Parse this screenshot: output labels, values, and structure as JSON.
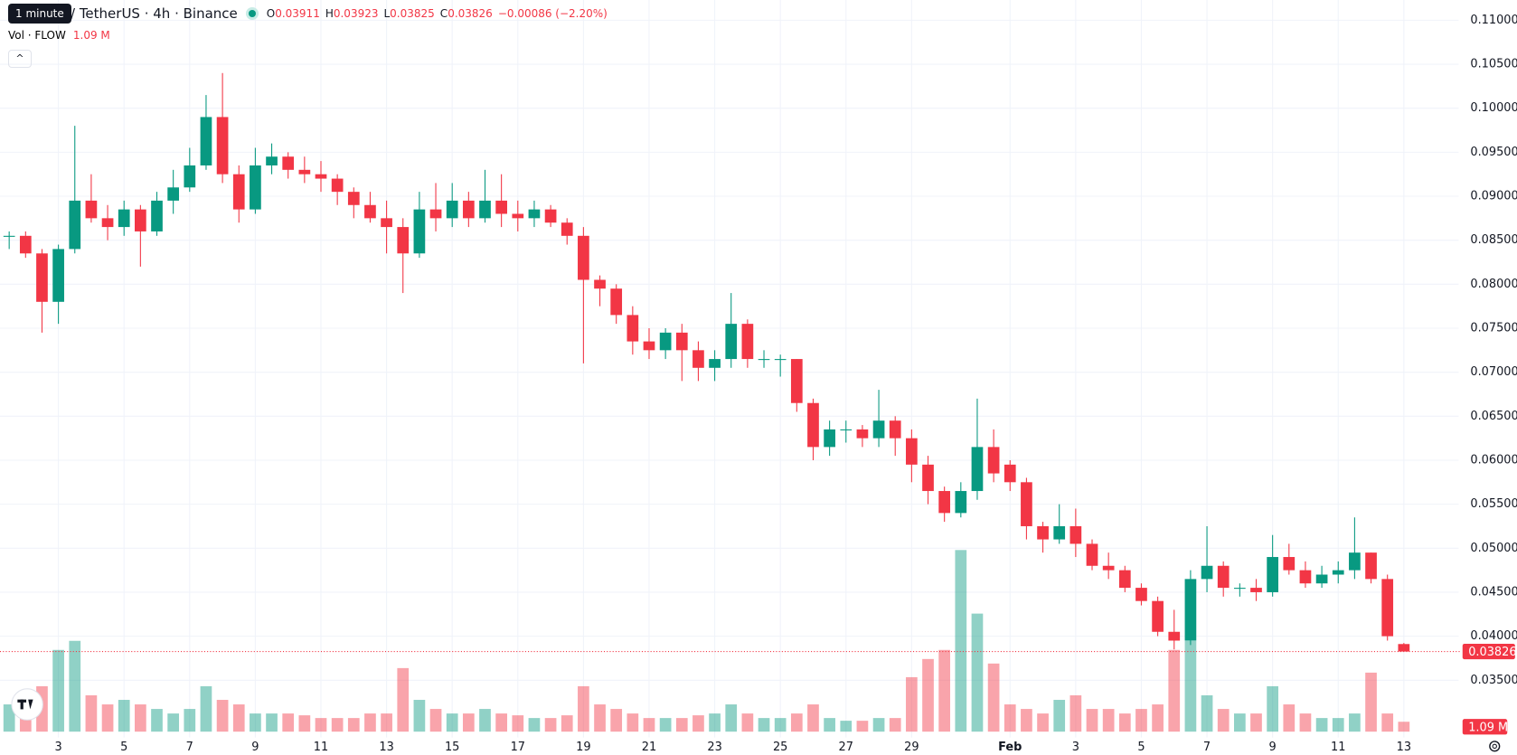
{
  "chart_data": {
    "type": "candlestick",
    "tooltip": "1 minute",
    "symbol": "/ TetherUS · 4h · Binance",
    "ohlc_letters": [
      "O",
      "H",
      "L",
      "C"
    ],
    "change_label": "−0.00086 (−2.20%)",
    "volume_title": "Vol · FLOW",
    "volume_last_label": "1.09 M",
    "up_color": "#089981",
    "down_color": "#f23645",
    "grid": true,
    "xlim": [
      1.22,
      45.67
    ],
    "ylim": [
      0.0265,
      0.1123
    ],
    "y2lim": [
      0,
      30
    ],
    "xticks": [
      3,
      5,
      7,
      9,
      11,
      13,
      15,
      17,
      19,
      21,
      23,
      25,
      27,
      29,
      {
        "value": 32,
        "label": "Feb"
      },
      {
        "value": 34,
        "label": "3"
      },
      {
        "value": 36,
        "label": "5"
      },
      {
        "value": 38,
        "label": "7"
      },
      {
        "value": 40,
        "label": "9"
      },
      {
        "value": 42,
        "label": "11"
      },
      {
        "value": 44,
        "label": "13"
      }
    ],
    "yticks": [
      {
        "value": 0.035,
        "label": "0.03500"
      },
      {
        "value": 0.04,
        "label": "0.04000"
      },
      {
        "value": 0.045,
        "label": "0.04500"
      },
      {
        "value": 0.05,
        "label": "0.05000"
      },
      {
        "value": 0.055,
        "label": "0.05500"
      },
      {
        "value": 0.06,
        "label": "0.06000"
      },
      {
        "value": 0.065,
        "label": "0.06500"
      },
      {
        "value": 0.07,
        "label": "0.07000"
      },
      {
        "value": 0.075,
        "label": "0.07500"
      },
      {
        "value": 0.08,
        "label": "0.08000"
      },
      {
        "value": 0.085,
        "label": "0.08500"
      },
      {
        "value": 0.09,
        "label": "0.09000"
      },
      {
        "value": 0.095,
        "label": "0.09500"
      },
      {
        "value": 0.1,
        "label": "0.10000"
      },
      {
        "value": 0.105,
        "label": "0.10500"
      },
      {
        "value": 0.11,
        "label": "0.11000"
      }
    ],
    "x": [
      1.5,
      2,
      2.5,
      3,
      3.5,
      4,
      4.5,
      5,
      5.5,
      6,
      6.5,
      7,
      7.5,
      8,
      8.5,
      9,
      9.5,
      10,
      10.5,
      11,
      11.5,
      12,
      12.5,
      13,
      13.5,
      14,
      14.5,
      15,
      15.5,
      16,
      16.5,
      17,
      17.5,
      18,
      18.5,
      19,
      19.5,
      20,
      20.5,
      21,
      21.5,
      22,
      22.5,
      23,
      23.5,
      24,
      24.5,
      25,
      25.5,
      26,
      26.5,
      27,
      27.5,
      28,
      28.5,
      29,
      29.5,
      30,
      30.5,
      31,
      31.5,
      32,
      32.5,
      33,
      33.5,
      34,
      34.5,
      35,
      35.5,
      36,
      36.5,
      37,
      37.5,
      38,
      38.5,
      39,
      39.5,
      40,
      40.5,
      41,
      41.5,
      42,
      42.5,
      43,
      43.5,
      44
    ],
    "open": [
      0.0855,
      0.0855,
      0.0835,
      0.078,
      0.084,
      0.0895,
      0.0875,
      0.0865,
      0.0885,
      0.086,
      0.0895,
      0.091,
      0.0935,
      0.099,
      0.0925,
      0.0885,
      0.0935,
      0.0945,
      0.093,
      0.0925,
      0.092,
      0.0905,
      0.089,
      0.0875,
      0.0865,
      0.0835,
      0.0885,
      0.0875,
      0.0895,
      0.0875,
      0.0895,
      0.088,
      0.0875,
      0.0885,
      0.087,
      0.0855,
      0.0805,
      0.0795,
      0.0765,
      0.0735,
      0.0725,
      0.0745,
      0.0725,
      0.0705,
      0.0715,
      0.0755,
      0.0715,
      0.0715,
      0.0715,
      0.0665,
      0.0615,
      0.0635,
      0.0635,
      0.0625,
      0.0645,
      0.0625,
      0.0595,
      0.0565,
      0.054,
      0.0565,
      0.0615,
      0.0595,
      0.0575,
      0.0525,
      0.051,
      0.0525,
      0.0505,
      0.048,
      0.0475,
      0.0455,
      0.044,
      0.0405,
      0.0395,
      0.0465,
      0.048,
      0.0455,
      0.0455,
      0.045,
      0.049,
      0.0475,
      0.046,
      0.047,
      0.0475,
      0.0495,
      0.0465,
      0.03911
    ],
    "high": [
      0.086,
      0.086,
      0.084,
      0.0845,
      0.098,
      0.0925,
      0.089,
      0.0895,
      0.089,
      0.0905,
      0.093,
      0.0955,
      0.1015,
      0.104,
      0.0935,
      0.0955,
      0.096,
      0.095,
      0.0945,
      0.094,
      0.0925,
      0.091,
      0.0905,
      0.0895,
      0.0875,
      0.0905,
      0.0915,
      0.0915,
      0.0905,
      0.093,
      0.0925,
      0.0895,
      0.0895,
      0.089,
      0.0875,
      0.0865,
      0.081,
      0.08,
      0.0775,
      0.075,
      0.075,
      0.0755,
      0.0735,
      0.0725,
      0.079,
      0.076,
      0.0725,
      0.072,
      0.0715,
      0.067,
      0.0645,
      0.0645,
      0.064,
      0.068,
      0.065,
      0.0635,
      0.0605,
      0.057,
      0.0575,
      0.067,
      0.0635,
      0.06,
      0.058,
      0.053,
      0.055,
      0.0545,
      0.051,
      0.0495,
      0.048,
      0.046,
      0.0445,
      0.043,
      0.0475,
      0.0525,
      0.0485,
      0.046,
      0.0465,
      0.0515,
      0.0505,
      0.0485,
      0.048,
      0.0485,
      0.0535,
      0.0495,
      0.047,
      0.03923
    ],
    "low": [
      0.084,
      0.083,
      0.0745,
      0.0755,
      0.0835,
      0.087,
      0.085,
      0.0855,
      0.082,
      0.0855,
      0.088,
      0.0905,
      0.093,
      0.0915,
      0.087,
      0.088,
      0.0925,
      0.092,
      0.0915,
      0.0905,
      0.089,
      0.0875,
      0.087,
      0.0835,
      0.079,
      0.083,
      0.086,
      0.0865,
      0.0865,
      0.087,
      0.0865,
      0.086,
      0.0865,
      0.0865,
      0.0845,
      0.071,
      0.0775,
      0.0755,
      0.072,
      0.0715,
      0.0715,
      0.069,
      0.069,
      0.069,
      0.0705,
      0.0705,
      0.0705,
      0.0695,
      0.0655,
      0.06,
      0.0605,
      0.062,
      0.0615,
      0.0615,
      0.0605,
      0.0575,
      0.055,
      0.053,
      0.0535,
      0.0555,
      0.0575,
      0.0565,
      0.051,
      0.0495,
      0.0505,
      0.049,
      0.0475,
      0.0465,
      0.045,
      0.0435,
      0.04,
      0.0385,
      0.039,
      0.045,
      0.0445,
      0.0445,
      0.044,
      0.0445,
      0.047,
      0.0455,
      0.0455,
      0.046,
      0.0465,
      0.046,
      0.0395,
      0.03825
    ],
    "close": [
      0.0855,
      0.0835,
      0.078,
      0.084,
      0.0895,
      0.0875,
      0.0865,
      0.0885,
      0.086,
      0.0895,
      0.091,
      0.0935,
      0.099,
      0.0925,
      0.0885,
      0.0935,
      0.0945,
      0.093,
      0.0925,
      0.092,
      0.0905,
      0.089,
      0.0875,
      0.0865,
      0.0835,
      0.0885,
      0.0875,
      0.0895,
      0.0875,
      0.0895,
      0.088,
      0.0875,
      0.0885,
      0.087,
      0.0855,
      0.0805,
      0.0795,
      0.0765,
      0.0735,
      0.0725,
      0.0745,
      0.0725,
      0.0705,
      0.0715,
      0.0755,
      0.0715,
      0.0715,
      0.0715,
      0.0665,
      0.0615,
      0.0635,
      0.0635,
      0.0625,
      0.0645,
      0.0625,
      0.0595,
      0.0565,
      0.054,
      0.0565,
      0.0615,
      0.0585,
      0.0575,
      0.0525,
      0.051,
      0.0525,
      0.0505,
      0.048,
      0.0475,
      0.0455,
      0.044,
      0.0405,
      0.0395,
      0.0465,
      0.048,
      0.0455,
      0.0455,
      0.045,
      0.049,
      0.0475,
      0.046,
      0.047,
      0.0475,
      0.0495,
      0.0465,
      0.04,
      0.03826
    ],
    "volume": {
      "values": [
        3,
        2.5,
        5,
        9,
        10,
        4,
        3,
        3.5,
        3,
        2.5,
        2,
        2.5,
        5,
        3.5,
        3,
        2,
        2,
        2,
        1.8,
        1.5,
        1.5,
        1.5,
        2,
        2,
        7,
        3.5,
        2.5,
        2,
        2,
        2.5,
        2,
        1.8,
        1.5,
        1.5,
        1.8,
        5,
        3,
        2.5,
        2,
        1.5,
        1.5,
        1.5,
        1.8,
        2,
        3,
        2,
        1.5,
        1.5,
        2,
        3,
        1.5,
        1.2,
        1.2,
        1.5,
        1.5,
        6,
        8,
        9,
        20,
        13,
        7.5,
        3,
        2.5,
        2,
        3.5,
        4,
        2.5,
        2.5,
        2,
        2.5,
        3,
        9,
        10,
        4,
        2.5,
        2,
        2,
        5,
        3,
        2,
        1.5,
        1.5,
        2,
        6.5,
        2,
        1.09
      ]
    }
  }
}
